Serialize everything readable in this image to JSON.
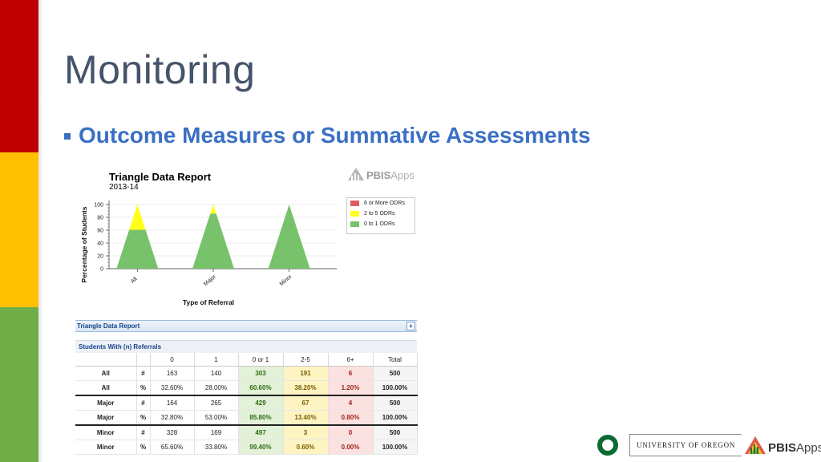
{
  "slide": {
    "title": "Monitoring",
    "bullet": "Outcome Measures or Summative Assessments"
  },
  "chart_data": {
    "type": "area",
    "title": "Triangle Data Report",
    "subtitle": "2013-14",
    "xlabel": "Type of Referral",
    "ylabel": "Percentage of Students",
    "categories": [
      "All",
      "Major",
      "Minor"
    ],
    "ylim": [
      0,
      100
    ],
    "yticks": [
      0,
      20,
      40,
      60,
      80,
      100
    ],
    "series": [
      {
        "name": "0 to 1 ODRs",
        "color": "#77c26a",
        "values": [
          60.6,
          85.8,
          99.4
        ]
      },
      {
        "name": "2 to 5 ODRs",
        "color": "#ffff1a",
        "values": [
          38.2,
          13.4,
          0.6
        ]
      },
      {
        "name": "6 or More ODRs",
        "color": "#e05c5c",
        "values": [
          1.2,
          0.8,
          0.0
        ]
      }
    ],
    "legend_position": "right",
    "grid": true
  },
  "branding": {
    "pbis_prefix": "PBIS",
    "pbis_suffix": "Apps",
    "university": "UNIVERSITY OF OREGON"
  },
  "report": {
    "title": "Triangle Data Report",
    "subtitle": "Students With (n) Referrals",
    "headers": [
      "",
      "",
      "0",
      "1",
      "0 or 1",
      "2-5",
      "6+",
      "Total"
    ],
    "rows": [
      {
        "label": "All",
        "sym": "#",
        "c0": "163",
        "c1": "140",
        "c01": "303",
        "c25": "191",
        "c6": "6",
        "total": "500"
      },
      {
        "label": "All",
        "sym": "%",
        "c0": "32.60%",
        "c1": "28.00%",
        "c01": "60.60%",
        "c25": "38.20%",
        "c6": "1.20%",
        "total": "100.00%"
      },
      {
        "label": "Major",
        "sym": "#",
        "c0": "164",
        "c1": "265",
        "c01": "429",
        "c25": "67",
        "c6": "4",
        "total": "500"
      },
      {
        "label": "Major",
        "sym": "%",
        "c0": "32.80%",
        "c1": "53.00%",
        "c01": "85.80%",
        "c25": "13.40%",
        "c6": "0.80%",
        "total": "100.00%"
      },
      {
        "label": "Minor",
        "sym": "#",
        "c0": "328",
        "c1": "169",
        "c01": "497",
        "c25": "3",
        "c6": "0",
        "total": "500"
      },
      {
        "label": "Minor",
        "sym": "%",
        "c0": "65.60%",
        "c1": "33.80%",
        "c01": "99.40%",
        "c25": "0.60%",
        "c6": "0.00%",
        "total": "100.00%"
      }
    ]
  }
}
